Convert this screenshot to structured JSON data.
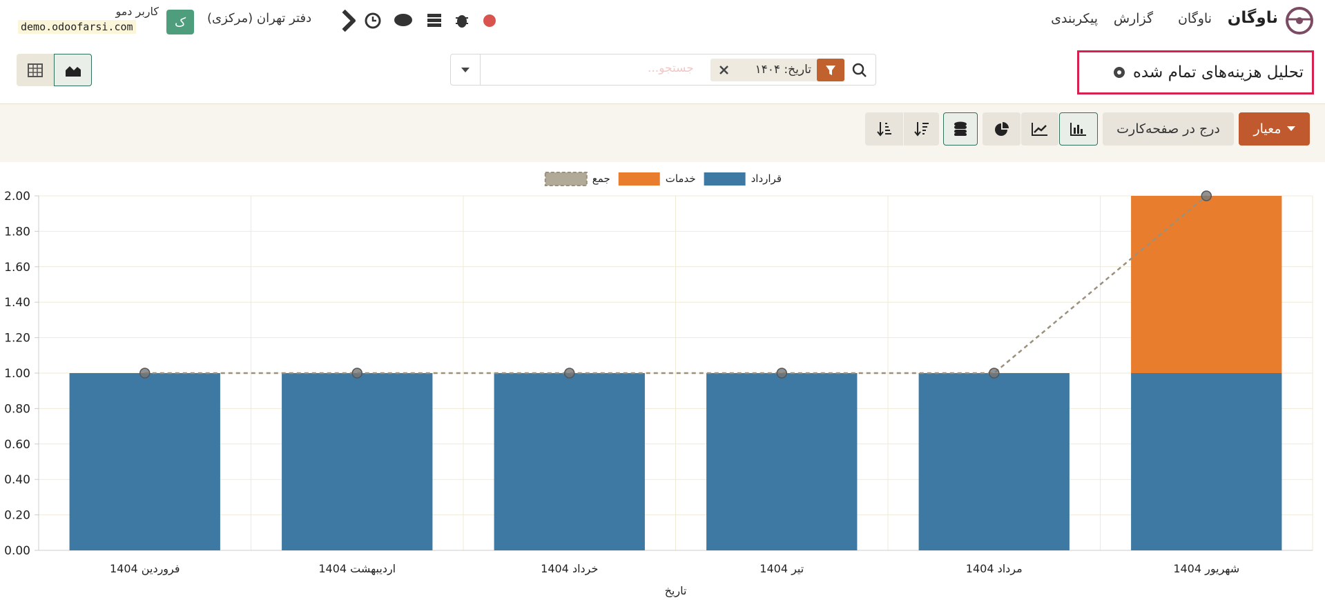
{
  "navbar": {
    "app_name": "ناوگان",
    "menus": [
      "ناوگان",
      "گزارش",
      "پیکربندی"
    ],
    "company": "دفتر تهران (مرکزی)",
    "user": "کاربر دمو",
    "database": "demo.odoofarsi.com",
    "avatar": "ک"
  },
  "control_panel": {
    "title": "تحلیل هزینه‌های تمام شده",
    "search_facet": "تاریخ: ۱۴۰۴",
    "search_placeholder": "جستجو...",
    "measure_button": "معیار",
    "insert_button": "درج در صفحه‌کارت"
  },
  "chart_data": {
    "type": "bar",
    "stacked": true,
    "grid": true,
    "legend": "top",
    "xlabel": "تاریخ",
    "categories": [
      "فروردین 1404",
      "اردیبهشت 1404",
      "خرداد 1404",
      "تیر 1404",
      "مرداد 1404",
      "شهریور 1404"
    ],
    "series": [
      {
        "name": "قرارداد",
        "color": "#3d79a3",
        "values": [
          1,
          1,
          1,
          1,
          1,
          1
        ]
      },
      {
        "name": "خدمات",
        "color": "#e97d2e",
        "values": [
          0,
          0,
          0,
          0,
          0,
          1
        ]
      },
      {
        "name": "جمع",
        "type": "line",
        "color": "#9a907c",
        "values": [
          1,
          1,
          1,
          1,
          1,
          2
        ]
      }
    ],
    "ylim": [
      0,
      2
    ],
    "yticks": [
      {
        "value": 0,
        "label": "0.00"
      },
      {
        "value": 0.2,
        "label": "0.20"
      },
      {
        "value": 0.4,
        "label": "0.40"
      },
      {
        "value": 0.6,
        "label": "0.60"
      },
      {
        "value": 0.8,
        "label": "0.80"
      },
      {
        "value": 1,
        "label": "1.00"
      },
      {
        "value": 1.2,
        "label": "1.20"
      },
      {
        "value": 1.4,
        "label": "1.40"
      },
      {
        "value": 1.6,
        "label": "1.60"
      },
      {
        "value": 1.8,
        "label": "1.80"
      },
      {
        "value": 2,
        "label": "2.00"
      }
    ]
  }
}
